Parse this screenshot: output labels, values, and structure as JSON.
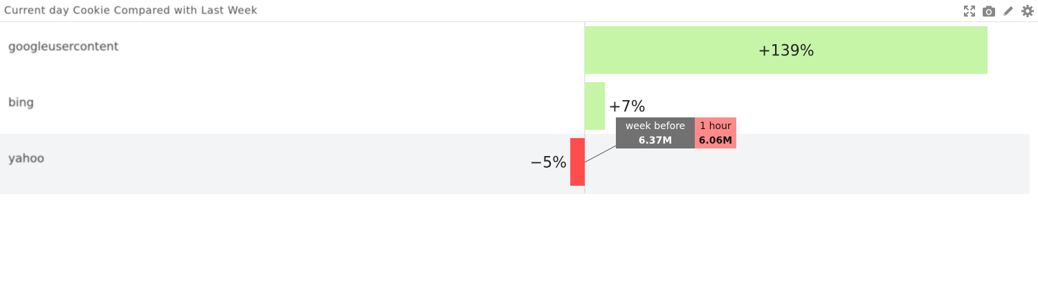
{
  "header": {
    "title": "Current day Cookie Compared with Last Week",
    "icons": [
      "expand-icon",
      "camera-icon",
      "pencil-icon",
      "gear-icon"
    ]
  },
  "chart_data": {
    "type": "bar",
    "orientation": "horizontal",
    "categories": [
      "googleusercontent",
      "bing",
      "yahoo"
    ],
    "values": [
      139,
      7,
      -5
    ],
    "value_labels": [
      "+139%",
      "+7%",
      "−5%"
    ],
    "unit": "%",
    "colors": {
      "positive": "#c6f5a8",
      "negative": "#ff4d4d"
    },
    "highlighted_row": 2,
    "tooltip": {
      "row": 2,
      "week_before_label": "week before",
      "week_before_value": "6.37M",
      "current_label": "1 hour",
      "current_value": "6.06M"
    }
  }
}
